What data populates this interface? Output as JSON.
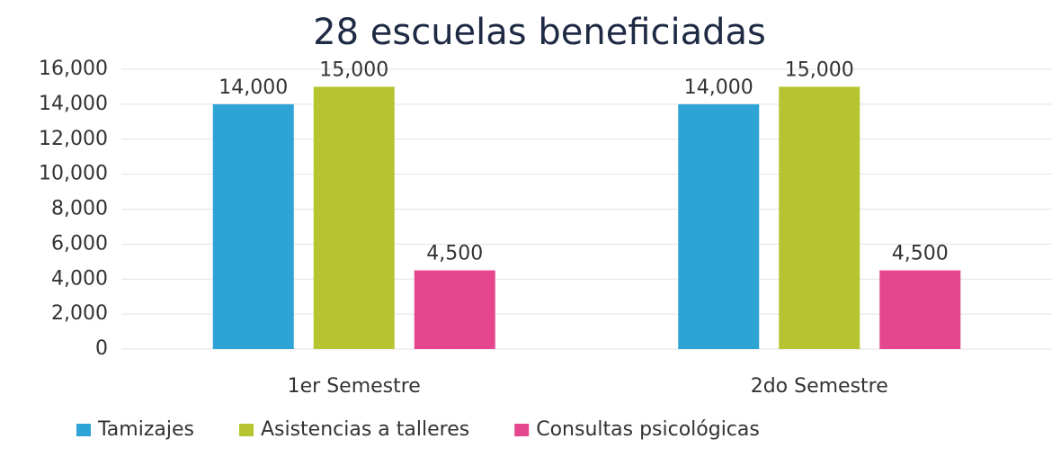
{
  "chart_data": {
    "type": "bar",
    "title": "28 escuelas beneficiadas",
    "categories": [
      "1er Semestre",
      "2do Semestre"
    ],
    "series": [
      {
        "name": "Tamizajes",
        "color": "#2ea3d6",
        "values": [
          14000,
          14000
        ],
        "value_labels": [
          "14,000",
          "14,000"
        ]
      },
      {
        "name": "Asistencias a talleres",
        "color": "#b6c42f",
        "values": [
          15000,
          15000
        ],
        "value_labels": [
          "15,000",
          "15,000"
        ]
      },
      {
        "name": "Consultas psicológicas",
        "color": "#e6468e",
        "values": [
          4500,
          4500
        ],
        "value_labels": [
          "4,500",
          "4,500"
        ]
      }
    ],
    "ylim": [
      0,
      16000
    ],
    "yticks": [
      0,
      {
        "value": 2000,
        "label": "2,000"
      },
      {
        "value": 4000,
        "label": "4,000"
      },
      {
        "value": 6000,
        "label": "6,000"
      },
      {
        "value": 8000,
        "label": "8,000"
      },
      {
        "value": 10000,
        "label": "10,000"
      },
      {
        "value": 12000,
        "label": "12,000"
      },
      {
        "value": 14000,
        "label": "14,000"
      },
      {
        "value": 16000,
        "label": "16,000"
      }
    ],
    "grid": true,
    "legend": "bottom"
  }
}
